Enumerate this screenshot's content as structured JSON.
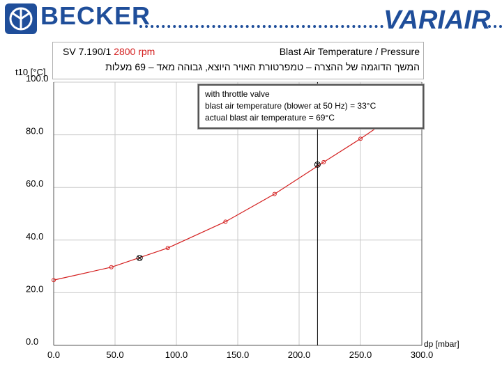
{
  "header": {
    "brand_left": "BECKER",
    "brand_right": "VARIAIR",
    "accent_color": "#1f4e9a"
  },
  "chart_header": {
    "model": "SV 7.190/1",
    "rpm": "2800 rpm",
    "title": "Blast Air Temperature / Pressure",
    "subtitle_hebrew": "המשך הדוגמה של ההצרה – טמפרטורת האויר היוצא, גבוהה מאד – 69 מעלות"
  },
  "legend": {
    "line1": "with throttle valve",
    "line2": "blast air temperature (blower at 50 Hz) = 33°C",
    "line3": "actual blast air temperature = 69°C"
  },
  "chart_data": {
    "type": "line",
    "xlabel": "dp [mbar]",
    "ylabel": "t10 [°C]",
    "xlim": [
      0,
      300
    ],
    "ylim": [
      0,
      100
    ],
    "x_ticks": [
      "0.0",
      "50.0",
      "100.0",
      "150.0",
      "200.0",
      "250.0",
      "300.0"
    ],
    "y_ticks": [
      "0.0",
      "20.0",
      "40.0",
      "60.0",
      "80.0",
      "100.0"
    ],
    "grid": true,
    "line_color": "#d42020",
    "series": [
      {
        "x": [
          0,
          47,
          93,
          140,
          180,
          220,
          250,
          280
        ],
        "y": [
          24.8,
          29.7,
          37.0,
          47.0,
          57.5,
          69.6,
          78.5,
          88.0
        ]
      }
    ],
    "markers": [
      {
        "x": 70,
        "y": 33.2,
        "label": "33°C"
      },
      {
        "x": 215,
        "y": 68.7,
        "label": "69°C"
      }
    ],
    "vertical_line_x": 215
  }
}
